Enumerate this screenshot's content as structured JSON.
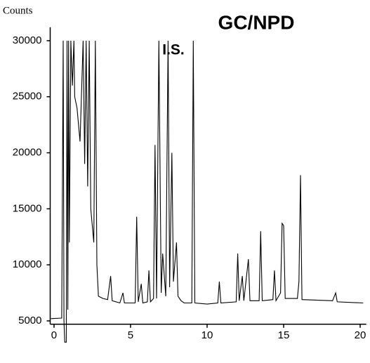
{
  "chart_data": {
    "type": "line",
    "title": "GC/NPD",
    "y_label": "Counts",
    "annotation": "I.S.",
    "x": [
      -0.2,
      0.5,
      0.6,
      0.65,
      0.7,
      0.8,
      0.85,
      0.9,
      0.95,
      1.0,
      1.1,
      1.2,
      1.3,
      1.35,
      1.5,
      1.7,
      1.9,
      2.0,
      2.1,
      2.2,
      2.3,
      2.4,
      2.6,
      2.7,
      2.8,
      2.9,
      3.2,
      3.5,
      3.7,
      3.8,
      4.3,
      4.5,
      4.6,
      5.3,
      5.4,
      5.5,
      5.7,
      5.8,
      6.1,
      6.2,
      6.3,
      6.5,
      6.6,
      6.7,
      6.85,
      7.0,
      7.1,
      7.3,
      7.45,
      7.55,
      7.7,
      7.8,
      8.0,
      8.1,
      8.3,
      8.5,
      9.0,
      9.1,
      9.2,
      10.0,
      10.7,
      10.8,
      10.9,
      11.9,
      12.0,
      12.1,
      12.3,
      12.4,
      12.7,
      12.8,
      13.4,
      13.5,
      13.6,
      14.3,
      14.4,
      14.5,
      14.8,
      14.9,
      15.0,
      15.1,
      15.9,
      16.0,
      16.1,
      16.2,
      18.2,
      18.4,
      18.5,
      20.2
    ],
    "values": [
      5200,
      5250,
      30000,
      5000,
      3100,
      3100,
      30000,
      6000,
      30000,
      12000,
      30000,
      26000,
      30000,
      25000,
      24000,
      21000,
      30000,
      19000,
      30000,
      17000,
      30000,
      15000,
      12000,
      30000,
      10000,
      7200,
      7000,
      6900,
      9000,
      6800,
      6600,
      7500,
      6600,
      6600,
      14300,
      6700,
      8300,
      6600,
      6700,
      9500,
      6700,
      7000,
      20700,
      7000,
      30000,
      7500,
      11000,
      7200,
      30000,
      8000,
      20000,
      8500,
      12000,
      7200,
      6800,
      6600,
      6600,
      30000,
      6600,
      6500,
      6600,
      8500,
      6600,
      6700,
      11000,
      6800,
      9000,
      6800,
      10500,
      6800,
      6800,
      13000,
      6800,
      6900,
      9500,
      6800,
      7500,
      13700,
      13500,
      7000,
      7000,
      8500,
      18000,
      6900,
      6800,
      7500,
      6700,
      6600
    ],
    "color": "#000000",
    "xlim": [
      -0.25,
      20.4
    ],
    "ylim": [
      4700,
      31200
    ],
    "xticks": [
      0,
      5,
      10,
      15,
      20
    ],
    "yticks": [
      5000,
      10000,
      15000,
      20000,
      25000,
      30000
    ],
    "grid": false
  }
}
